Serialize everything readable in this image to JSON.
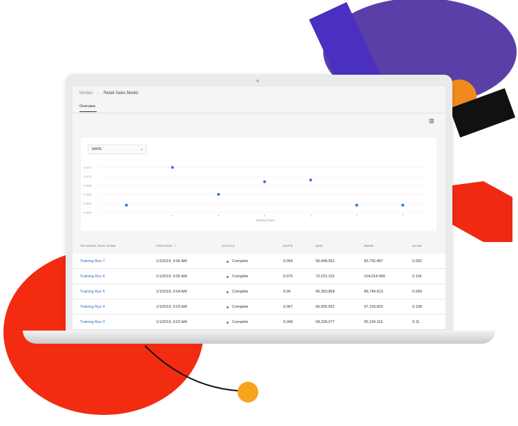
{
  "breadcrumb": {
    "parent": "Models",
    "current": "Retail Sales Model"
  },
  "tabs": [
    {
      "label": "Overview",
      "active": true
    }
  ],
  "toolbar": {
    "icon": "columns-icon"
  },
  "chart_data": {
    "type": "scatter",
    "metric_select": "MAPE",
    "xlabel": "Training Runs",
    "x_ticks": [
      "",
      "6",
      "5",
      "4",
      "3",
      "2",
      "1"
    ],
    "y_ticks": [
      "0.075",
      "0.070",
      "0.065",
      "0.060",
      "0.055",
      "0.050"
    ],
    "ylim": [
      0.05,
      0.075
    ],
    "points": [
      {
        "run": 7,
        "y": 0.054
      },
      {
        "run": 6,
        "y": 0.075
      },
      {
        "run": 5,
        "y": 0.06
      },
      {
        "run": 4,
        "y": 0.067
      },
      {
        "run": 3,
        "y": 0.068
      },
      {
        "run": 2,
        "y": 0.054
      },
      {
        "run": 1,
        "y": 0.054
      }
    ],
    "color": "#2f74c9",
    "grid": true
  },
  "table": {
    "columns": [
      "TRAINING RUN NAME",
      "CREATED",
      "STATUS",
      "MAPE",
      "MAE",
      "RMSE",
      "MASE"
    ],
    "sort_icon": "arrow-down-icon",
    "rows": [
      [
        "Training Run 7",
        "1/1/2019, 0:06 AM",
        "Complete",
        "0.054",
        "56,448.051",
        "83,792.487",
        "0.092"
      ],
      [
        "Training Run 6",
        "1/1/2019, 0:05 AM",
        "Complete",
        "0.075",
        "72,021.119",
        "104,014.989",
        "0.118"
      ],
      [
        "Training Run 5",
        "1/1/2019, 0:04 AM",
        "Complete",
        "0.06",
        "60,363.858",
        "89,749.613",
        "0.099"
      ],
      [
        "Training Run 4",
        "1/1/2019, 0:03 AM",
        "Complete",
        "0.067",
        "66,855.552",
        "97,193.825",
        "0.108"
      ],
      [
        "Training Run 3",
        "1/1/2019, 0:02 AM",
        "Complete",
        "0.068",
        "68,209.077",
        "95,234.119",
        "0.11"
      ]
    ]
  },
  "colors": {
    "status_complete": "#2d9d78",
    "link": "#2a6bbf"
  }
}
